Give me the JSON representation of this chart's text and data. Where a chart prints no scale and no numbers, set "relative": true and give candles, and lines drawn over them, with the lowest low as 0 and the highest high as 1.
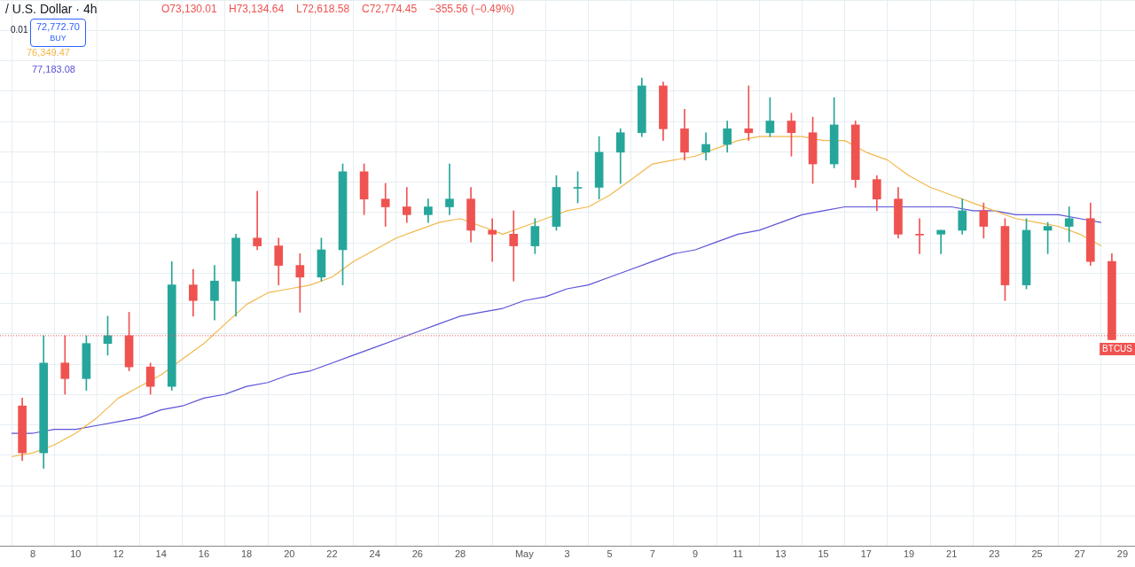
{
  "chart_data": {
    "type": "candlestick",
    "relative": true,
    "grid": true,
    "x": [
      "--04-07T12:00",
      "--04-08T12:00",
      "--04-09T12:00",
      "--04-10T12:00",
      "--04-11T12:00",
      "--04-12T12:00",
      "--04-13T12:00",
      "--04-14T12:00",
      "--04-15T12:00",
      "--04-16T12:00",
      "--04-17T12:00",
      "--04-18T12:00",
      "--04-19T12:00",
      "--04-20T12:00",
      "--04-21T12:00",
      "--04-22T12:00",
      "--04-23T12:00",
      "--04-24T12:00",
      "--04-25T12:00",
      "--04-26T12:00",
      "--04-27T12:00",
      "--04-28T12:00",
      "--04-29T12:00",
      "--04-30T12:00",
      "--05-01T12:00",
      "--05-02T12:00",
      "--05-03T12:00",
      "--05-04T12:00",
      "--05-05T12:00",
      "--05-06T12:00",
      "--05-07T12:00",
      "--05-08T12:00",
      "--05-09T12:00",
      "--05-10T12:00",
      "--05-11T12:00",
      "--05-12T12:00",
      "--05-13T12:00",
      "--05-14T12:00",
      "--05-15T12:00",
      "--05-16T12:00",
      "--05-17T12:00",
      "--05-18T12:00",
      "--05-19T12:00",
      "--05-20T12:00",
      "--05-21T12:00",
      "--05-22T12:00",
      "--05-23T12:00",
      "--05-24T12:00",
      "--05-25T12:00",
      "--05-26T12:00",
      "--05-27T12:00",
      "--05-28T12:00"
    ],
    "ohlc": [
      [
        0.16,
        0.18,
        0.02,
        0.04
      ],
      [
        0.04,
        0.34,
        0,
        0.27
      ],
      [
        0.27,
        0.34,
        0.19,
        0.23
      ],
      [
        0.23,
        0.34,
        0.2,
        0.32
      ],
      [
        0.32,
        0.39,
        0.29,
        0.34
      ],
      [
        0.34,
        0.4,
        0.25,
        0.26
      ],
      [
        0.26,
        0.27,
        0.19,
        0.21
      ],
      [
        0.21,
        0.53,
        0.2,
        0.47
      ],
      [
        0.47,
        0.51,
        0.39,
        0.43
      ],
      [
        0.43,
        0.52,
        0.38,
        0.48
      ],
      [
        0.48,
        0.6,
        0.39,
        0.59
      ],
      [
        0.59,
        0.71,
        0.56,
        0.57
      ],
      [
        0.57,
        0.59,
        0.47,
        0.52
      ],
      [
        0.52,
        0.55,
        0.4,
        0.49
      ],
      [
        0.49,
        0.59,
        0.48,
        0.56
      ],
      [
        0.56,
        0.78,
        0.47,
        0.76
      ],
      [
        0.76,
        0.78,
        0.65,
        0.69
      ],
      [
        0.69,
        0.73,
        0.62,
        0.67
      ],
      [
        0.67,
        0.72,
        0.63,
        0.65
      ],
      [
        0.65,
        0.69,
        0.63,
        0.67
      ],
      [
        0.67,
        0.78,
        0.65,
        0.69
      ],
      [
        0.69,
        0.72,
        0.58,
        0.61
      ],
      [
        0.61,
        0.64,
        0.53,
        0.6
      ],
      [
        0.6,
        0.66,
        0.48,
        0.57
      ],
      [
        0.57,
        0.64,
        0.55,
        0.62
      ],
      [
        0.62,
        0.75,
        0.61,
        0.72
      ],
      [
        0.72,
        0.76,
        0.68,
        0.72
      ],
      [
        0.72,
        0.85,
        0.69,
        0.81
      ],
      [
        0.81,
        0.87,
        0.73,
        0.86
      ],
      [
        0.86,
        1,
        0.85,
        0.98
      ],
      [
        0.98,
        0.99,
        0.84,
        0.87
      ],
      [
        0.87,
        0.92,
        0.79,
        0.81
      ],
      [
        0.81,
        0.86,
        0.79,
        0.83
      ],
      [
        0.83,
        0.89,
        0.81,
        0.87
      ],
      [
        0.87,
        0.98,
        0.84,
        0.86
      ],
      [
        0.86,
        0.95,
        0.85,
        0.89
      ],
      [
        0.89,
        0.91,
        0.8,
        0.86
      ],
      [
        0.86,
        0.9,
        0.73,
        0.78
      ],
      [
        0.78,
        0.95,
        0.77,
        0.88
      ],
      [
        0.88,
        0.89,
        0.72,
        0.74
      ],
      [
        0.74,
        0.75,
        0.66,
        0.69
      ],
      [
        0.69,
        0.72,
        0.59,
        0.6
      ],
      [
        0.6,
        0.64,
        0.55,
        0.6
      ],
      [
        0.6,
        0.61,
        0.55,
        0.61
      ],
      [
        0.61,
        0.69,
        0.6,
        0.66
      ],
      [
        0.66,
        0.68,
        0.59,
        0.62
      ],
      [
        0.62,
        0.64,
        0.43,
        0.47
      ],
      [
        0.47,
        0.64,
        0.46,
        0.61
      ],
      [
        0.61,
        0.63,
        0.55,
        0.62
      ],
      [
        0.62,
        0.67,
        0.58,
        0.64
      ],
      [
        0.64,
        0.68,
        0.52,
        0.53
      ],
      [
        0.53,
        0.55,
        0.33,
        0.33
      ]
    ],
    "colors": [
      "#ef5350",
      "#26a69a",
      "#ef5350",
      "#26a69a",
      "#26a69a",
      "#ef5350",
      "#ef5350",
      "#26a69a",
      "#ef5350",
      "#26a69a",
      "#26a69a",
      "#ef5350",
      "#ef5350",
      "#ef5350",
      "#26a69a",
      "#26a69a",
      "#ef5350",
      "#ef5350",
      "#ef5350",
      "#26a69a",
      "#26a69a",
      "#ef5350",
      "#ef5350",
      "#ef5350",
      "#26a69a",
      "#26a69a",
      "#26a69a",
      "#26a69a",
      "#26a69a",
      "#26a69a",
      "#ef5350",
      "#ef5350",
      "#26a69a",
      "#26a69a",
      "#ef5350",
      "#26a69a",
      "#ef5350",
      "#ef5350",
      "#26a69a",
      "#ef5350",
      "#ef5350",
      "#ef5350",
      "#ef5350",
      "#26a69a",
      "#26a69a",
      "#ef5350",
      "#ef5350",
      "#26a69a",
      "#26a69a",
      "#26a69a",
      "#ef5350",
      "#ef5350"
    ],
    "series": [
      {
        "type": "line",
        "color": "#f2b84b",
        "x": [
          "--04-07",
          "--04-08",
          "--04-09",
          "--04-10",
          "--04-11",
          "--04-12",
          "--04-13",
          "--04-14",
          "--04-15",
          "--04-16",
          "--04-17",
          "--04-18",
          "--04-19",
          "--04-20",
          "--04-21",
          "--04-22",
          "--04-23",
          "--04-24",
          "--04-25",
          "--04-26",
          "--04-27",
          "--04-28",
          "--04-29",
          "--04-30",
          "--05-01",
          "--05-02",
          "--05-03",
          "--05-04",
          "--05-05",
          "--05-06",
          "--05-07",
          "--05-08",
          "--05-09",
          "--05-10",
          "--05-11",
          "--05-12",
          "--05-13",
          "--05-14",
          "--05-15",
          "--05-16",
          "--05-17",
          "--05-18",
          "--05-19",
          "--05-20",
          "--05-21",
          "--05-22",
          "--05-23",
          "--05-24",
          "--05-25",
          "--05-26",
          "--05-27",
          "--05-28"
        ],
        "values": [
          0.03,
          0.04,
          0.06,
          0.09,
          0.13,
          0.18,
          0.21,
          0.24,
          0.28,
          0.32,
          0.37,
          0.42,
          0.45,
          0.46,
          0.47,
          0.49,
          0.53,
          0.56,
          0.59,
          0.61,
          0.63,
          0.64,
          0.62,
          0.6,
          0.62,
          0.64,
          0.66,
          0.67,
          0.7,
          0.74,
          0.78,
          0.79,
          0.8,
          0.82,
          0.84,
          0.85,
          0.85,
          0.85,
          0.84,
          0.84,
          0.81,
          0.79,
          0.75,
          0.72,
          0.7,
          0.68,
          0.66,
          0.64,
          0.63,
          0.62,
          0.6,
          0.57
        ]
      },
      {
        "type": "line",
        "color": "#5b52d6",
        "x": [
          "--04-07",
          "--04-08",
          "--04-09",
          "--04-10",
          "--04-11",
          "--04-12",
          "--04-13",
          "--04-14",
          "--04-15",
          "--04-16",
          "--04-17",
          "--04-18",
          "--04-19",
          "--04-20",
          "--04-21",
          "--04-22",
          "--04-23",
          "--04-24",
          "--04-25",
          "--04-26",
          "--04-27",
          "--04-28",
          "--04-29",
          "--04-30",
          "--05-01",
          "--05-02",
          "--05-03",
          "--05-04",
          "--05-05",
          "--05-06",
          "--05-07",
          "--05-08",
          "--05-09",
          "--05-10",
          "--05-11",
          "--05-12",
          "--05-13",
          "--05-14",
          "--05-15",
          "--05-16",
          "--05-17",
          "--05-18",
          "--05-19",
          "--05-20",
          "--05-21",
          "--05-22",
          "--05-23",
          "--05-24",
          "--05-25",
          "--05-26",
          "--05-27",
          "--05-28"
        ],
        "values": [
          0.09,
          0.09,
          0.1,
          0.1,
          0.11,
          0.12,
          0.13,
          0.15,
          0.16,
          0.18,
          0.19,
          0.21,
          0.22,
          0.24,
          0.25,
          0.27,
          0.29,
          0.31,
          0.33,
          0.35,
          0.37,
          0.39,
          0.4,
          0.41,
          0.43,
          0.44,
          0.46,
          0.47,
          0.49,
          0.51,
          0.53,
          0.55,
          0.56,
          0.58,
          0.6,
          0.61,
          0.63,
          0.65,
          0.66,
          0.67,
          0.67,
          0.67,
          0.67,
          0.67,
          0.67,
          0.66,
          0.66,
          0.65,
          0.65,
          0.65,
          0.64,
          0.63
        ]
      }
    ],
    "xlim": [
      "--04-06T11:00",
      "--05-29T14:00"
    ],
    "xticks": [
      {
        "value": "--04-08",
        "label": "8"
      },
      {
        "value": "--04-10",
        "label": "10"
      },
      {
        "value": "--04-12",
        "label": "12"
      },
      {
        "value": "--04-14",
        "label": "14"
      },
      {
        "value": "--04-16",
        "label": "16"
      },
      {
        "value": "--04-18",
        "label": "18"
      },
      {
        "value": "--04-20",
        "label": "20"
      },
      {
        "value": "--04-22",
        "label": "22"
      },
      {
        "value": "--04-24",
        "label": "24"
      },
      {
        "value": "--04-26",
        "label": "26"
      },
      {
        "value": "--04-28",
        "label": "28"
      },
      {
        "value": "--05-01",
        "label": "May"
      },
      {
        "value": "--05-03",
        "label": "3"
      },
      {
        "value": "--05-05",
        "label": "5"
      },
      {
        "value": "--05-07",
        "label": "7"
      },
      {
        "value": "--05-09",
        "label": "9"
      },
      {
        "value": "--05-11",
        "label": "11"
      },
      {
        "value": "--05-13",
        "label": "13"
      },
      {
        "value": "--05-15",
        "label": "15"
      },
      {
        "value": "--05-17",
        "label": "17"
      },
      {
        "value": "--05-19",
        "label": "19"
      },
      {
        "value": "--05-21",
        "label": "21"
      },
      {
        "value": "--05-23",
        "label": "23"
      },
      {
        "value": "--05-25",
        "label": "25"
      },
      {
        "value": "--05-27",
        "label": "27"
      },
      {
        "value": "--05-29",
        "label": "29"
      }
    ],
    "ref_lines": [
      {
        "axis": "y",
        "value": 0.34,
        "label": "BTCUS",
        "color": "#ef5350",
        "line_style": "dotted"
      }
    ],
    "annotations": [
      "/ U.S. Dollar · 4h",
      "O73,130.01",
      "H73,134.64",
      "L72,618.58",
      "C72,774.45",
      "−355.56 (−0.49%)",
      "0.01",
      "72,772.70",
      "BUY",
      "76,349.47",
      "77,183.08"
    ]
  }
}
